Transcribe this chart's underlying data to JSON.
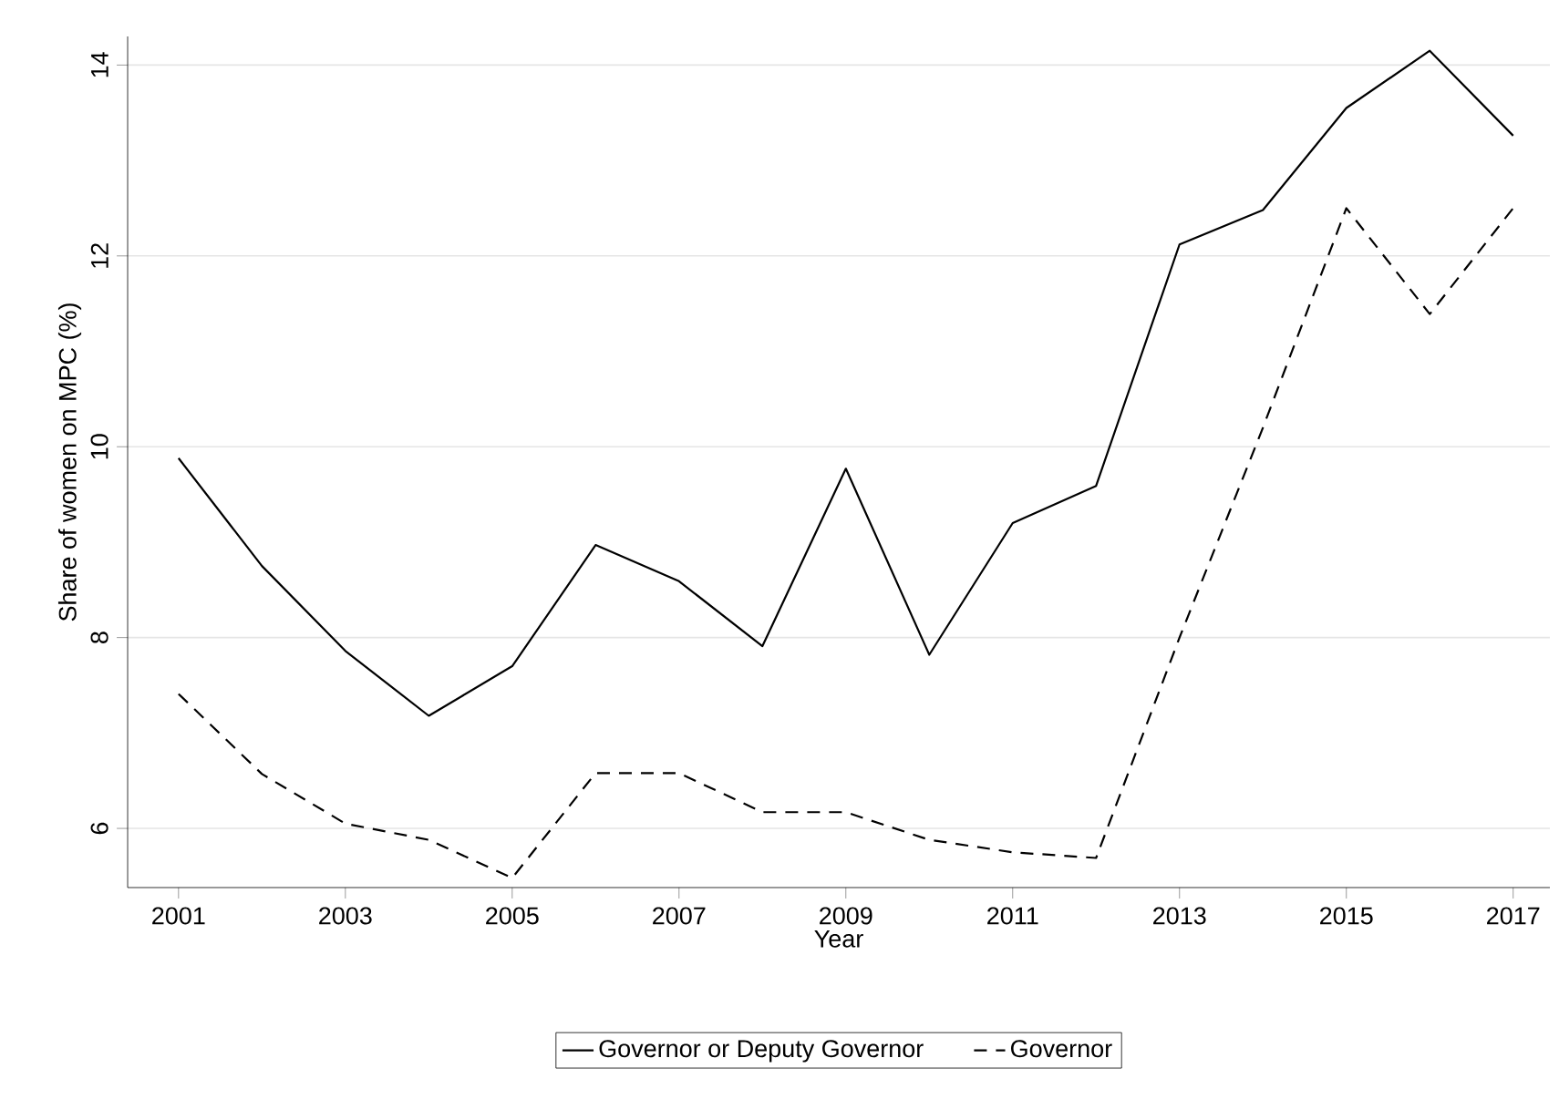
{
  "chart_data": {
    "type": "line",
    "xlabel": "Year",
    "ylabel": "Share of women on MPC (%)",
    "x": [
      2001,
      2002,
      2003,
      2004,
      2005,
      2006,
      2007,
      2008,
      2009,
      2010,
      2011,
      2012,
      2013,
      2014,
      2015,
      2016,
      2017
    ],
    "series": [
      {
        "name": "Governor or Deputy Governor",
        "color": "#000000",
        "line_style": "solid",
        "values": [
          9.88,
          8.75,
          7.86,
          7.18,
          7.7,
          8.97,
          8.59,
          7.91,
          9.77,
          7.82,
          9.2,
          9.59,
          12.12,
          12.48,
          13.55,
          14.15,
          13.26
        ]
      },
      {
        "name": "Governor",
        "color": "#000000",
        "line_style": "dashed",
        "values": [
          7.41,
          6.57,
          6.05,
          5.88,
          5.48,
          6.58,
          6.58,
          6.17,
          6.17,
          5.88,
          5.75,
          5.69,
          8.0,
          10.2,
          12.5,
          11.39,
          12.5
        ]
      }
    ],
    "xlim": [
      2000.39,
      2017.44
    ],
    "ylim": [
      5.38,
      14.3
    ],
    "xticks": [
      2001,
      2003,
      2005,
      2007,
      2009,
      2011,
      2013,
      2015,
      2017
    ],
    "yticks": [
      6,
      8,
      10,
      12,
      14
    ],
    "grid": "y",
    "legend": "bottom"
  }
}
